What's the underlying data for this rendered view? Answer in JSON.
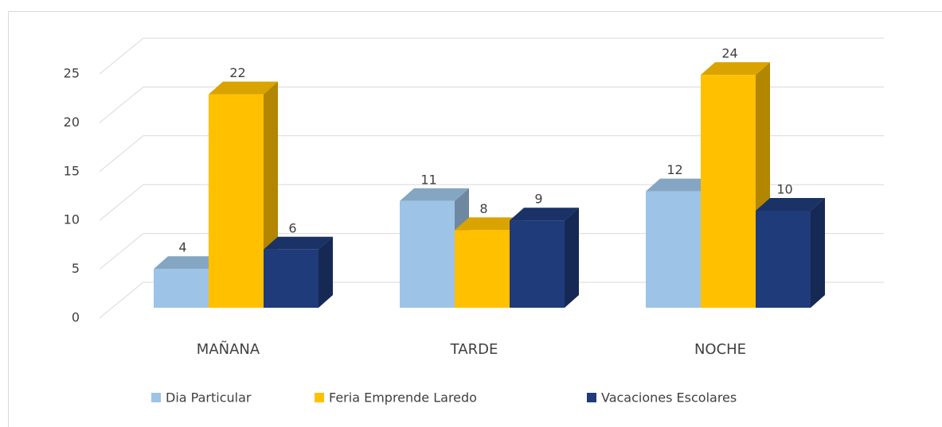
{
  "chart_data": {
    "type": "bar",
    "categories": [
      "MAÑANA",
      "TARDE",
      "NOCHE"
    ],
    "series": [
      {
        "name": "Dia Particular",
        "color": "#9dc3e6",
        "values": [
          4,
          11,
          12
        ]
      },
      {
        "name": "Feria Emprende Laredo",
        "color": "#ffc000",
        "values": [
          22,
          8,
          24
        ]
      },
      {
        "name": "Vacaciones Escolares",
        "color": "#203b7a",
        "values": [
          6,
          9,
          10
        ]
      }
    ],
    "ylim": [
      0,
      25
    ],
    "yticks": [
      0,
      5,
      10,
      15,
      20,
      25
    ],
    "grid": true,
    "legend": "bottom"
  }
}
